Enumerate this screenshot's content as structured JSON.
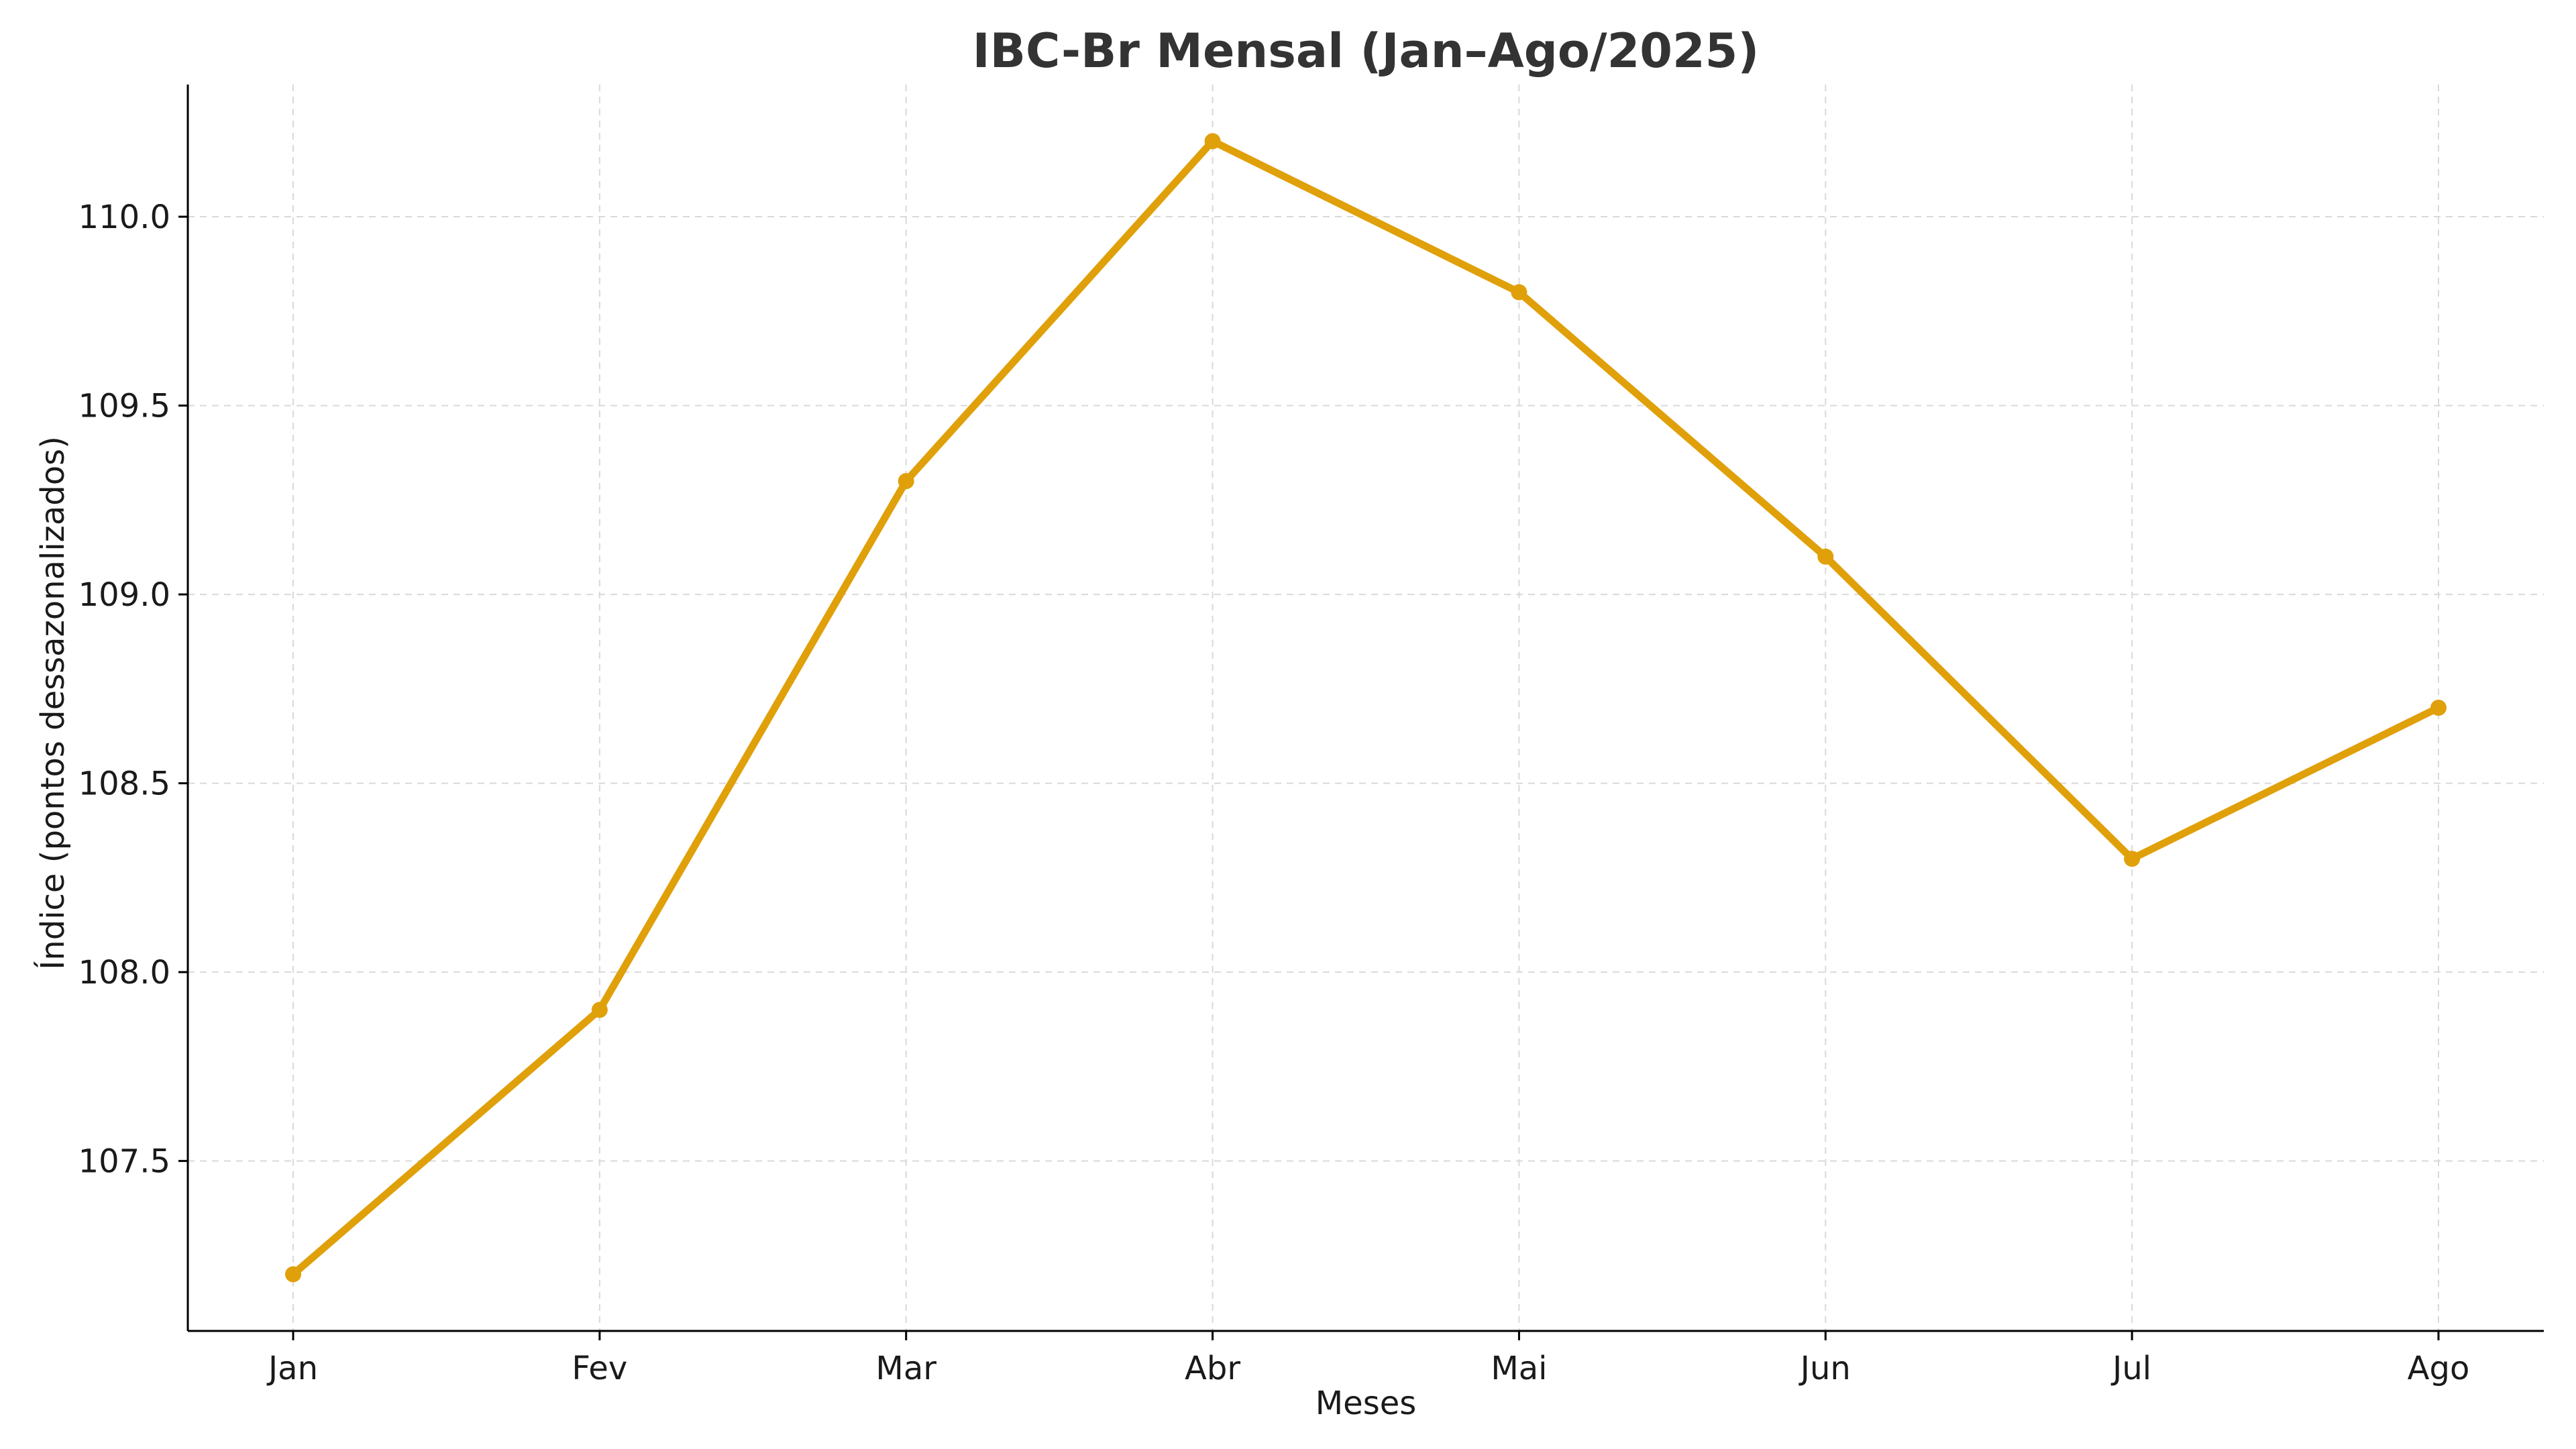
{
  "chart_data": {
    "type": "line",
    "title": "IBC-Br Mensal (Jan–Ago/2025)",
    "xlabel": "Meses",
    "ylabel": "Índice (pontos dessazonalizados)",
    "categories": [
      "Jan",
      "Fev",
      "Mar",
      "Abr",
      "Mai",
      "Jun",
      "Jul",
      "Ago"
    ],
    "series": [
      {
        "values": [
          107.2,
          107.9,
          109.3,
          110.2,
          109.8,
          109.1,
          108.3,
          108.7
        ]
      }
    ],
    "ylim": [
      107.05,
      110.35
    ],
    "yticks": [
      107.5,
      108.0,
      108.5,
      109.0,
      109.5,
      110.0
    ],
    "ytick_labels": [
      "107.5",
      "108.0",
      "108.5",
      "109.0",
      "109.5",
      "110.0"
    ],
    "grid": true,
    "colors": {
      "line": "#E0A00A",
      "grid": "#d9d9d9",
      "title": "#333333"
    }
  }
}
